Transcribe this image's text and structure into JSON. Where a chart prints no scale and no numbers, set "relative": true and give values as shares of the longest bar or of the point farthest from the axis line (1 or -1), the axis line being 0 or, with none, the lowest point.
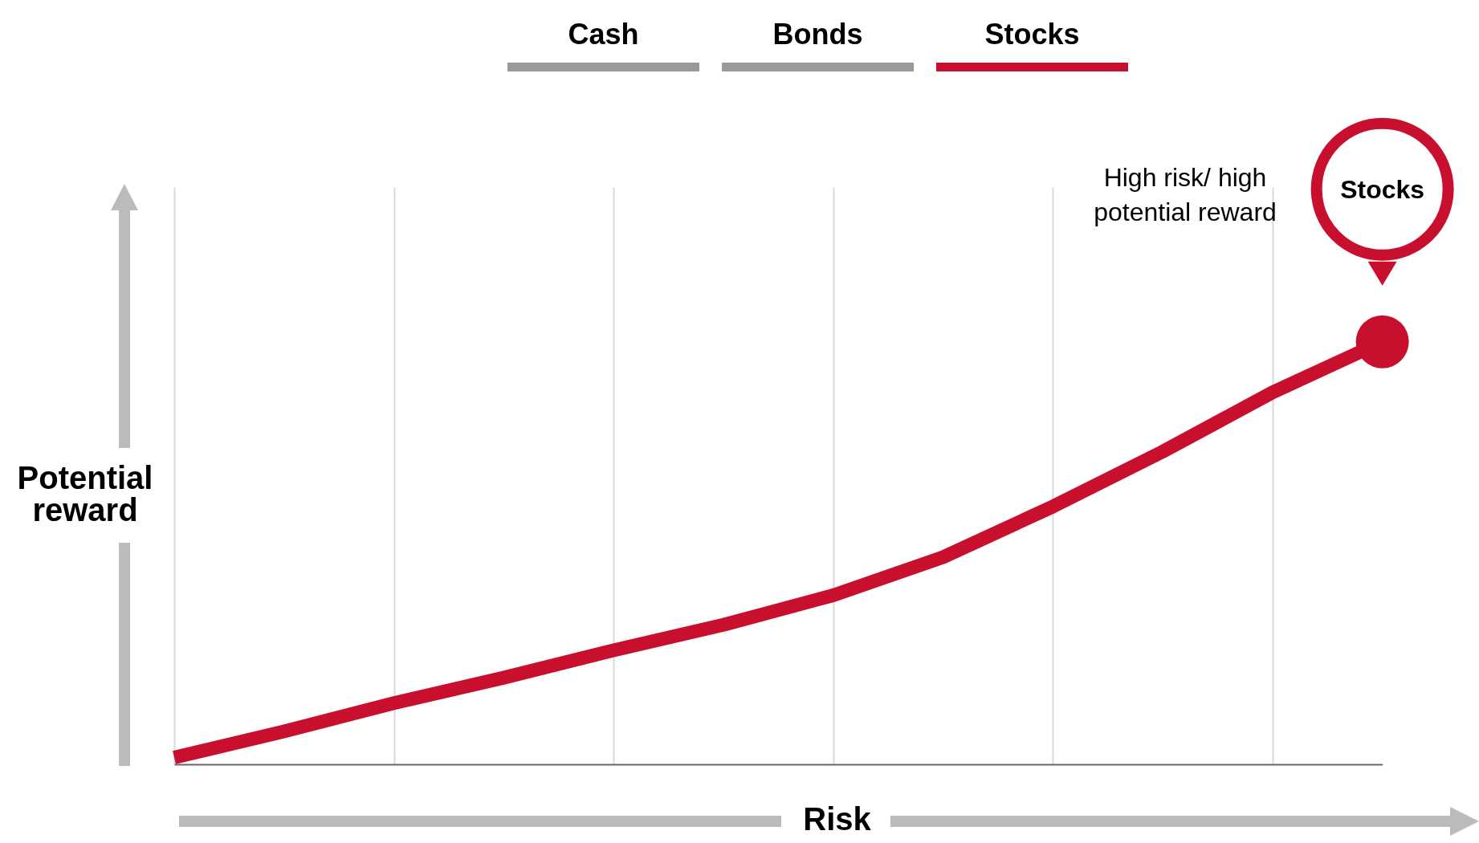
{
  "chart_data": {
    "type": "line",
    "relative": true,
    "xlabel": "Risk",
    "ylabel": "Potential reward",
    "categories": [
      null,
      null,
      null,
      null,
      null,
      null,
      null,
      null,
      null,
      null,
      null,
      null
    ],
    "series": [
      {
        "name": "Stocks",
        "color": "#c8102e",
        "values": [
          0.016,
          0.078,
          0.145,
          0.205,
          0.27,
          0.33,
          0.4,
          0.49,
          0.61,
          0.74,
          0.88,
          1
        ]
      }
    ],
    "annotations": [
      "Cash",
      "Bonds",
      "Stocks",
      "High risk/ high potential reward"
    ],
    "grid": "x"
  }
}
